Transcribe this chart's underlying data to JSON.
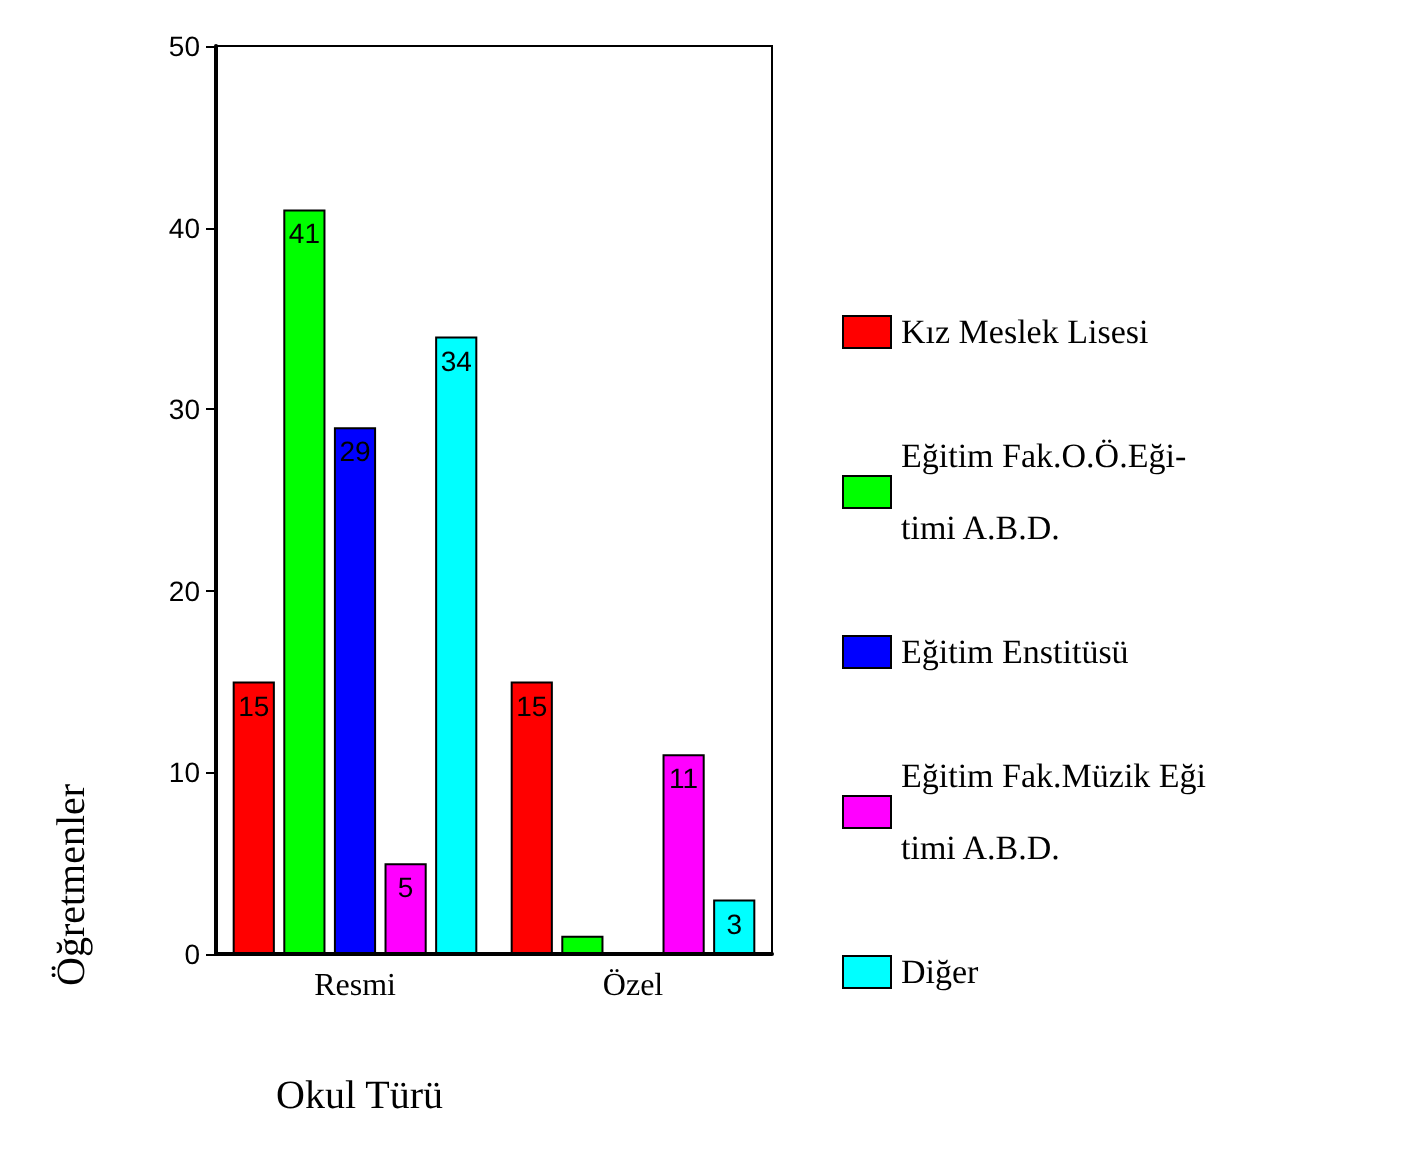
{
  "chart_data": {
    "type": "bar",
    "annotations": [
      "Okul Türü"
    ],
    "ylabel": "Öğretmenler",
    "categories": [
      "Resmi",
      "Özel"
    ],
    "series": [
      {
        "name": "Kız Meslek Lisesi",
        "color": "#ff0000",
        "values": [
          15,
          15
        ],
        "value_labels": [
          "15",
          "15"
        ]
      },
      {
        "name": "Eğitim Fak.O.Ö.Eği-\ntimi A.B.D.",
        "color": "#00ff00",
        "values": [
          41,
          1
        ],
        "value_labels": [
          "41",
          null
        ]
      },
      {
        "name": "Eğitim Enstitüsü",
        "color": "#0000ff",
        "values": [
          29,
          null
        ],
        "value_labels": [
          "29",
          null
        ]
      },
      {
        "name": "Eğitim Fak.Müzik Eği\ntimi A.B.D.",
        "color": "#ff00ff",
        "values": [
          5,
          11
        ],
        "value_labels": [
          "5",
          "11"
        ]
      },
      {
        "name": "Diğer",
        "color": "#00ffff",
        "values": [
          34,
          3
        ],
        "value_labels": [
          "34",
          "3"
        ]
      }
    ],
    "ylim": [
      0,
      50
    ],
    "yticks": [
      0,
      10,
      20,
      30,
      40,
      50
    ],
    "grid": false,
    "legend": "right"
  }
}
